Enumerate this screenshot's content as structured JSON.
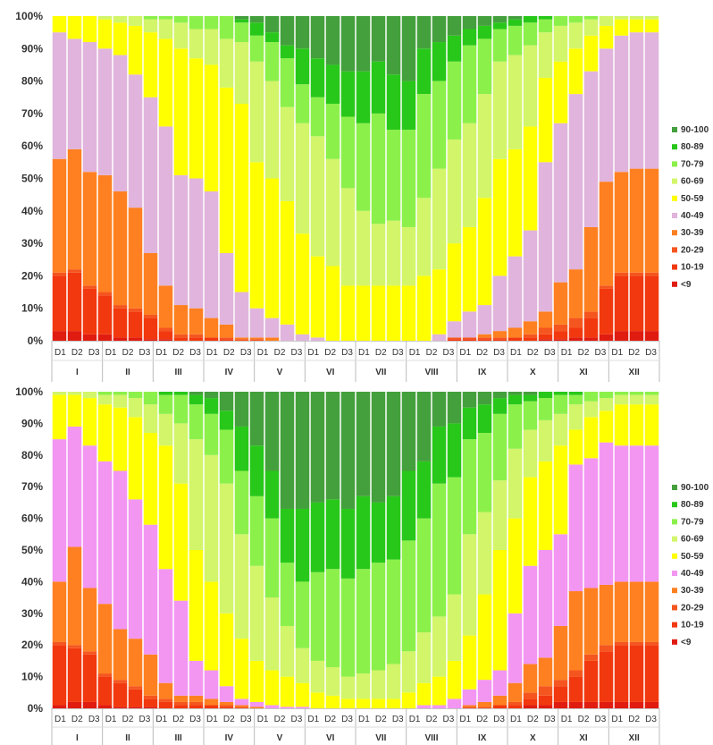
{
  "colors": {
    "classes": [
      "#e01c10",
      "#f2380e",
      "#f5551e",
      "#ff8020",
      "#e0b4dc",
      "#ffff00",
      "#d2f56a",
      "#8cf04a",
      "#28c81a",
      "#44a03c"
    ],
    "classes_chart2": [
      "#e01c10",
      "#f2380e",
      "#f5551e",
      "#ff8020",
      "#f296f2",
      "#ffff00",
      "#d2f56a",
      "#8cf04a",
      "#28c81a",
      "#44a03c"
    ]
  },
  "chart_data": [
    {
      "type": "bar",
      "stacked": true,
      "title": "",
      "xlabel": "",
      "ylabel": "",
      "ylim": [
        0,
        100
      ],
      "yticks": [
        "0%",
        "10%",
        "20%",
        "30%",
        "40%",
        "50%",
        "60%",
        "70%",
        "80%",
        "90%",
        "100%"
      ],
      "months": [
        "I",
        "II",
        "III",
        "IV",
        "V",
        "VI",
        "VII",
        "VIII",
        "IX",
        "X",
        "XI",
        "XII"
      ],
      "decades": [
        "D1",
        "D2",
        "D3"
      ],
      "legend": [
        "90-100",
        "80-89",
        "70-79",
        "60-69",
        "50-59",
        "40-49",
        "30-39",
        "20-29",
        "10-19",
        "<9"
      ],
      "legend_position": "right",
      "series_order": [
        "<9",
        "10-19",
        "20-29",
        "30-39",
        "40-49",
        "50-59",
        "60-69",
        "70-79",
        "80-89",
        "90-100"
      ],
      "cumulative_upper_bounds": [
        [
          3,
          20,
          21,
          56,
          95,
          100,
          100,
          100,
          100,
          100
        ],
        [
          3,
          21,
          22,
          59,
          93,
          100,
          100,
          100,
          100,
          100
        ],
        [
          2,
          16,
          17,
          52,
          92,
          100,
          100,
          100,
          100,
          100
        ],
        [
          2,
          14,
          15,
          51,
          90,
          99,
          100,
          100,
          100,
          100
        ],
        [
          1,
          10,
          11,
          46,
          88,
          98,
          100,
          100,
          100,
          100
        ],
        [
          1,
          9,
          10,
          41,
          82,
          97,
          100,
          100,
          100,
          100
        ],
        [
          0.5,
          7,
          8,
          27,
          75,
          95,
          99,
          100,
          100,
          100
        ],
        [
          0.5,
          3,
          4,
          17,
          66,
          93,
          99,
          100,
          100,
          100
        ],
        [
          0,
          1,
          2,
          11,
          51,
          90,
          98,
          100,
          100,
          100
        ],
        [
          0,
          1,
          2,
          10,
          50,
          87,
          96,
          100,
          100,
          100
        ],
        [
          0,
          1,
          1,
          7,
          46,
          85,
          96,
          100,
          100,
          100
        ],
        [
          0,
          0.5,
          1,
          5,
          27,
          78,
          93,
          100,
          100,
          100
        ],
        [
          0,
          0,
          0.5,
          1,
          15,
          73,
          92,
          98,
          99,
          100
        ],
        [
          0,
          0,
          0.5,
          1,
          10,
          55,
          86,
          94,
          98,
          100
        ],
        [
          0,
          0,
          0,
          1,
          7,
          50,
          80,
          92,
          95,
          100
        ],
        [
          0,
          0,
          0,
          0,
          5,
          43,
          72,
          87,
          91,
          100
        ],
        [
          0,
          0,
          0,
          0,
          2,
          33,
          67,
          79,
          90,
          100
        ],
        [
          0,
          0,
          0,
          0,
          1,
          26,
          63,
          75,
          87,
          100
        ],
        [
          0,
          0,
          0,
          0,
          0,
          23,
          56,
          73,
          85,
          100
        ],
        [
          0,
          0,
          0,
          0,
          0,
          17,
          47,
          69,
          83,
          100
        ],
        [
          0,
          0,
          0,
          0,
          0,
          17,
          40,
          67,
          83,
          100
        ],
        [
          0,
          0,
          0,
          0,
          0,
          17,
          36,
          70,
          86,
          100
        ],
        [
          0,
          0,
          0,
          0,
          0,
          17,
          37,
          65,
          82,
          100
        ],
        [
          0,
          0,
          0,
          0,
          0,
          17,
          35,
          65,
          80,
          100
        ],
        [
          0,
          0,
          0,
          0,
          0,
          20,
          44,
          76,
          90,
          100
        ],
        [
          0,
          0,
          0,
          0,
          2,
          22,
          53,
          80,
          92,
          100
        ],
        [
          0,
          0.5,
          1,
          1,
          6,
          30,
          62,
          86,
          94,
          100
        ],
        [
          0,
          0.5,
          1,
          1,
          9,
          35,
          67,
          91,
          96,
          100
        ],
        [
          0,
          0.5,
          1,
          2,
          11,
          44,
          76,
          93,
          97,
          100
        ],
        [
          0,
          0.5,
          1,
          3,
          20,
          56,
          86,
          96,
          98,
          100
        ],
        [
          0,
          1,
          1,
          4,
          26,
          59,
          88,
          97,
          99,
          100
        ],
        [
          0,
          1,
          2,
          6,
          34,
          66,
          91,
          98,
          100,
          100
        ],
        [
          0.5,
          2,
          4,
          9,
          55,
          81,
          95,
          99,
          100,
          100
        ],
        [
          0.5,
          3,
          5,
          18,
          67,
          86,
          97,
          100,
          100,
          100
        ],
        [
          1,
          4,
          7,
          22,
          76,
          90,
          98,
          100,
          100,
          100
        ],
        [
          1,
          7,
          9,
          35,
          83,
          94,
          99,
          100,
          100,
          100
        ],
        [
          2,
          16,
          17,
          49,
          90,
          97,
          100,
          100,
          100,
          100
        ],
        [
          3,
          20,
          21,
          52,
          94,
          99,
          100,
          100,
          100,
          100
        ],
        [
          3,
          20,
          21,
          53,
          95,
          99,
          100,
          100,
          100,
          100
        ],
        [
          3,
          20,
          21,
          53,
          95,
          99,
          100,
          100,
          100,
          100
        ]
      ]
    },
    {
      "type": "bar",
      "stacked": true,
      "title": "",
      "xlabel": "",
      "ylabel": "",
      "ylim": [
        0,
        100
      ],
      "yticks": [
        "0%",
        "10%",
        "20%",
        "30%",
        "40%",
        "50%",
        "60%",
        "70%",
        "80%",
        "90%",
        "100%"
      ],
      "months": [
        "I",
        "II",
        "III",
        "IV",
        "V",
        "VI",
        "VII",
        "VIII",
        "IX",
        "X",
        "XI",
        "XII"
      ],
      "decades": [
        "D1",
        "D2",
        "D3"
      ],
      "legend": [
        "90-100",
        "80-89",
        "70-79",
        "60-69",
        "50-59",
        "40-49",
        "30-39",
        "20-29",
        "10-19",
        "<9"
      ],
      "legend_position": "right",
      "series_order": [
        "<9",
        "10-19",
        "20-29",
        "30-39",
        "40-49",
        "50-59",
        "60-69",
        "70-79",
        "80-89",
        "90-100"
      ],
      "cumulative_upper_bounds": [
        [
          1,
          20,
          21,
          40,
          85,
          99,
          100,
          100,
          100,
          100
        ],
        [
          2,
          19,
          20,
          51,
          89,
          99,
          100,
          100,
          100,
          100
        ],
        [
          2,
          17,
          18,
          38,
          83,
          98,
          100,
          100,
          100,
          100
        ],
        [
          1,
          10,
          11,
          33,
          78,
          96,
          99,
          100,
          100,
          100
        ],
        [
          0.5,
          8,
          9,
          25,
          75,
          95,
          99,
          100,
          100,
          100
        ],
        [
          0.5,
          6,
          7,
          22,
          66,
          92,
          98,
          100,
          100,
          100
        ],
        [
          0.5,
          3,
          4,
          17,
          58,
          87,
          96,
          100,
          100,
          100
        ],
        [
          0,
          2,
          3,
          8,
          44,
          83,
          93,
          99,
          100,
          100
        ],
        [
          0,
          1,
          2,
          4,
          34,
          71,
          90,
          99,
          100,
          100
        ],
        [
          0,
          1,
          2,
          4,
          15,
          50,
          85,
          96,
          99,
          100
        ],
        [
          0,
          1,
          1,
          3,
          12,
          40,
          80,
          93,
          98,
          100
        ],
        [
          0,
          0.5,
          1,
          2,
          7,
          30,
          71,
          88,
          94,
          100
        ],
        [
          0,
          0,
          0.5,
          1,
          3,
          22,
          55,
          75,
          89,
          100
        ],
        [
          0,
          0,
          0,
          0.5,
          2,
          15,
          45,
          67,
          83,
          100
        ],
        [
          0,
          0,
          0,
          0,
          1,
          12,
          35,
          60,
          75,
          100
        ],
        [
          0,
          0,
          0,
          0,
          0.5,
          10,
          26,
          46,
          63,
          100
        ],
        [
          0,
          0,
          0,
          0,
          0.5,
          8,
          19,
          40,
          63,
          100
        ],
        [
          0,
          0,
          0,
          0,
          0,
          5,
          15,
          43,
          65,
          100
        ],
        [
          0,
          0,
          0,
          0,
          0,
          4,
          13,
          44,
          66,
          100
        ],
        [
          0,
          0,
          0,
          0,
          0,
          3,
          10,
          41,
          63,
          100
        ],
        [
          0,
          0,
          0,
          0,
          0,
          3,
          11,
          44,
          67,
          100
        ],
        [
          0,
          0,
          0,
          0,
          0,
          3,
          12,
          46,
          65,
          100
        ],
        [
          0,
          0,
          0,
          0,
          0,
          3,
          14,
          47,
          67,
          100
        ],
        [
          0,
          0,
          0,
          0,
          0,
          5,
          18,
          53,
          75,
          100
        ],
        [
          0,
          0,
          0,
          0,
          1,
          8,
          24,
          60,
          78,
          100
        ],
        [
          0,
          0,
          0,
          0,
          1,
          10,
          29,
          71,
          89,
          100
        ],
        [
          0,
          0,
          0,
          0,
          3,
          15,
          36,
          73,
          90,
          100
        ],
        [
          0,
          0,
          0.5,
          1,
          6,
          23,
          55,
          85,
          95,
          100
        ],
        [
          0,
          0,
          0.5,
          2,
          9,
          36,
          62,
          87,
          96,
          100
        ],
        [
          0,
          1,
          1,
          4,
          12,
          50,
          72,
          93,
          98,
          100
        ],
        [
          0,
          1,
          2,
          8,
          30,
          60,
          82,
          96,
          99,
          100
        ],
        [
          1,
          3,
          5,
          14,
          45,
          73,
          88,
          97,
          99,
          100
        ],
        [
          1,
          4,
          7,
          16,
          50,
          78,
          91,
          98,
          100,
          100
        ],
        [
          2,
          7,
          9,
          26,
          55,
          83,
          93,
          99,
          100,
          100
        ],
        [
          2,
          10,
          12,
          37,
          77,
          88,
          96,
          99,
          100,
          100
        ],
        [
          2,
          15,
          17,
          38,
          79,
          92,
          97,
          100,
          100,
          100
        ],
        [
          2,
          18,
          20,
          39,
          84,
          94,
          98,
          100,
          100,
          100
        ],
        [
          2,
          20,
          21,
          40,
          83,
          96,
          99,
          100,
          100,
          100
        ],
        [
          2,
          20,
          21,
          40,
          83,
          96,
          99,
          100,
          100,
          100
        ],
        [
          2,
          20,
          21,
          40,
          83,
          96,
          99,
          100,
          100,
          100
        ]
      ]
    }
  ]
}
